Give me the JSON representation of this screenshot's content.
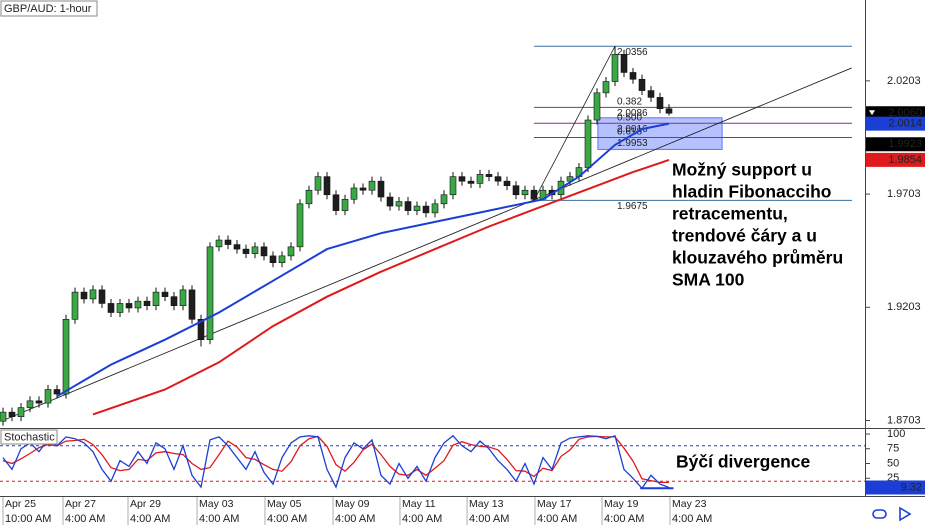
{
  "chart_data": {
    "type": "candlestick",
    "title": "GBP/AUD: 1-hour",
    "up_color": "#39a845",
    "down_color": "#1e1e1e",
    "open": [
      1.87,
      1.874,
      1.872,
      1.876,
      1.879,
      1.878,
      1.884,
      1.882,
      1.915,
      1.927,
      1.924,
      1.928,
      1.922,
      1.918,
      1.922,
      1.92,
      1.923,
      1.921,
      1.927,
      1.925,
      1.921,
      1.928,
      1.915,
      1.906,
      1.947,
      1.95,
      1.948,
      1.946,
      1.944,
      1.947,
      1.943,
      1.94,
      1.943,
      1.947,
      1.966,
      1.972,
      1.978,
      1.97,
      1.963,
      1.968,
      1.973,
      1.972,
      1.976,
      1.969,
      1.965,
      1.967,
      1.963,
      1.965,
      1.962,
      1.966,
      1.97,
      1.978,
      1.976,
      1.975,
      1.979,
      1.978,
      1.976,
      1.974,
      1.97,
      1.972,
      1.968,
      1.972,
      1.97,
      1.976,
      1.978,
      1.982,
      2.003,
      2.015,
      2.02,
      2.032,
      2.024,
      2.021,
      2.016,
      2.013,
      2.008
    ],
    "high": [
      1.876,
      1.876,
      1.878,
      1.881,
      1.881,
      1.886,
      1.886,
      1.917,
      1.929,
      1.929,
      1.93,
      1.93,
      1.924,
      1.924,
      1.924,
      1.925,
      1.925,
      1.929,
      1.929,
      1.927,
      1.93,
      1.93,
      1.917,
      1.949,
      1.952,
      1.952,
      1.95,
      1.948,
      1.949,
      1.949,
      1.945,
      1.945,
      1.949,
      1.968,
      1.974,
      1.98,
      1.98,
      1.972,
      1.97,
      1.975,
      1.975,
      1.978,
      1.978,
      1.971,
      1.969,
      1.969,
      1.967,
      1.967,
      1.968,
      1.972,
      1.98,
      1.98,
      1.978,
      1.981,
      1.981,
      1.98,
      1.978,
      1.976,
      1.974,
      1.974,
      1.974,
      1.974,
      1.978,
      1.98,
      1.984,
      2.005,
      2.017,
      2.022,
      2.0356,
      2.034,
      2.026,
      2.023,
      2.018,
      2.015,
      2.01
    ],
    "low": [
      1.868,
      1.87,
      1.87,
      1.874,
      1.876,
      1.876,
      1.88,
      1.88,
      1.913,
      1.922,
      1.922,
      1.92,
      1.916,
      1.916,
      1.918,
      1.918,
      1.919,
      1.919,
      1.923,
      1.919,
      1.919,
      1.913,
      1.903,
      1.904,
      1.945,
      1.946,
      1.944,
      1.942,
      1.942,
      1.941,
      1.938,
      1.938,
      1.941,
      1.945,
      1.964,
      1.97,
      1.968,
      1.961,
      1.961,
      1.966,
      1.97,
      1.97,
      1.967,
      1.963,
      1.963,
      1.961,
      1.961,
      1.96,
      1.96,
      1.964,
      1.968,
      1.974,
      1.973,
      1.973,
      1.976,
      1.974,
      1.972,
      1.968,
      1.968,
      1.9675,
      1.9678,
      1.968,
      1.968,
      1.974,
      1.976,
      1.98,
      2.001,
      2.013,
      2.018,
      2.022,
      2.019,
      2.014,
      2.011,
      2.006,
      2.005
    ],
    "close": [
      1.874,
      1.872,
      1.876,
      1.879,
      1.878,
      1.884,
      1.882,
      1.915,
      1.927,
      1.924,
      1.928,
      1.922,
      1.918,
      1.922,
      1.92,
      1.923,
      1.921,
      1.927,
      1.925,
      1.921,
      1.928,
      1.915,
      1.906,
      1.947,
      1.95,
      1.948,
      1.946,
      1.944,
      1.947,
      1.943,
      1.94,
      1.943,
      1.947,
      1.966,
      1.972,
      1.978,
      1.97,
      1.963,
      1.968,
      1.973,
      1.972,
      1.976,
      1.969,
      1.965,
      1.967,
      1.963,
      1.965,
      1.962,
      1.966,
      1.97,
      1.978,
      1.976,
      1.975,
      1.979,
      1.978,
      1.976,
      1.974,
      1.97,
      1.972,
      1.968,
      1.972,
      1.97,
      1.976,
      1.978,
      1.982,
      2.003,
      2.015,
      2.02,
      2.032,
      2.024,
      2.021,
      2.016,
      2.013,
      2.008,
      2.006
    ],
    "xlim": [
      -0.333,
      95.778
    ],
    "ylim": [
      1.867,
      2.056
    ],
    "yticks": [
      2.0203,
      1.9703,
      1.9203,
      1.8703
    ],
    "xticks": [
      {
        "value": 0,
        "label": "Apr 25"
      },
      {
        "value": 6.67,
        "label": "Apr 27"
      },
      {
        "value": 13.89,
        "label": "Apr 29"
      },
      {
        "value": 21.56,
        "label": "May 03"
      },
      {
        "value": 29.11,
        "label": "May 05"
      },
      {
        "value": 36.67,
        "label": "May 09"
      },
      {
        "value": 44.11,
        "label": "May 11"
      },
      {
        "value": 51.56,
        "label": "May 13"
      },
      {
        "value": 59.11,
        "label": "May 17"
      },
      {
        "value": 66.56,
        "label": "May 19"
      },
      {
        "value": 74.11,
        "label": "May 23"
      }
    ],
    "time_labels": [
      "10:00 AM",
      "4:00 AM",
      "4:00 AM",
      "4:00 AM",
      "4:00 AM",
      "4:00 AM",
      "4:00 AM",
      "4:00 AM",
      "4:00 AM",
      "4:00 AM",
      "4:00 AM"
    ],
    "overlays": [
      {
        "color": "#1b3fd6",
        "x": [
          6,
          12,
          18,
          24,
          30,
          36,
          42,
          48,
          54,
          60,
          64,
          68,
          71,
          74
        ],
        "values": [
          1.881,
          1.895,
          1.906,
          1.918,
          1.932,
          1.946,
          1.953,
          1.958,
          1.963,
          1.968,
          1.978,
          1.992,
          1.999,
          2.0014
        ]
      },
      {
        "color": "#e0191b",
        "x": [
          10,
          18,
          24,
          30,
          36,
          42,
          48,
          54,
          60,
          66,
          70,
          74
        ],
        "values": [
          1.873,
          1.884,
          1.896,
          1.912,
          1.925,
          1.936,
          1.946,
          1.956,
          1.965,
          1.974,
          1.98,
          1.9854
        ]
      }
    ],
    "trendline": {
      "x": [
        0.22,
        94.3
      ],
      "values": [
        1.8707,
        2.026
      ]
    },
    "fibonacci": {
      "x": [
        59,
        68
      ],
      "levels": [
        {
          "price": 2.0356,
          "color": "#3d6f99"
        },
        {
          "ratio": "0.382",
          "price": 2.0086,
          "color": "#8a2f8a"
        },
        {
          "ratio": "0.500",
          "price": 2.0016,
          "color": "#8a2f8a"
        },
        {
          "ratio": "0.618",
          "price": 1.9953,
          "color": "#8a2f8a"
        },
        {
          "price": 1.9675,
          "color": "#3d6f99"
        }
      ]
    },
    "zone": {
      "x": [
        66.1,
        79.9
      ],
      "values": [
        1.99,
        2.004
      ],
      "color": "#5a78ff"
    },
    "price_tags": [
      {
        "value": 2.006,
        "label": "2.0060",
        "color": "#000000"
      },
      {
        "value": 2.0014,
        "label": "2.0014",
        "color": "#1b3fd6"
      },
      {
        "value": 1.9923,
        "label": "1.9923",
        "color": "#000000"
      },
      {
        "value": 1.9854,
        "label": "1.9854",
        "color": "#e0191b"
      }
    ],
    "annotations": [
      {
        "lines": [
          "Možný support u",
          "hladin Fibonacciho",
          "retracementu,",
          "trendové čáry a u",
          "klouzavého průměru",
          "SMA 100"
        ]
      },
      {
        "lines": [
          "Býčí divergence"
        ]
      }
    ],
    "stochastic": {
      "title": "Stochastic",
      "ylim": [
        0,
        100
      ],
      "yticks": [
        100,
        75,
        50,
        25
      ],
      "levels": [
        {
          "value": 80,
          "color": "#1b3fd6"
        },
        {
          "value": 20,
          "color": "#e0191b"
        }
      ],
      "k": {
        "color": "#1b3fd6",
        "values": [
          60,
          40,
          75,
          85,
          70,
          90,
          80,
          95,
          92,
          85,
          70,
          40,
          20,
          55,
          45,
          70,
          50,
          85,
          75,
          40,
          80,
          30,
          10,
          90,
          95,
          80,
          60,
          40,
          70,
          35,
          15,
          60,
          85,
          95,
          97,
          95,
          40,
          10,
          60,
          85,
          75,
          90,
          30,
          15,
          50,
          25,
          45,
          20,
          60,
          85,
          97,
          80,
          70,
          88,
          75,
          55,
          40,
          20,
          50,
          15,
          60,
          40,
          85,
          93,
          95,
          97,
          96,
          92,
          97,
          40,
          25,
          8,
          30,
          15,
          9.32
        ]
      },
      "d": {
        "color": "#e0191b",
        "values": [
          55,
          50,
          58,
          67,
          77,
          82,
          80,
          88,
          89,
          91,
          82,
          65,
          43,
          38,
          40,
          57,
          55,
          68,
          70,
          67,
          65,
          50,
          40,
          43,
          65,
          88,
          78,
          60,
          57,
          48,
          40,
          37,
          53,
          80,
          92,
          96,
          79,
          48,
          37,
          52,
          73,
          83,
          65,
          45,
          32,
          30,
          40,
          30,
          42,
          55,
          81,
          87,
          82,
          79,
          78,
          73,
          57,
          38,
          37,
          28,
          42,
          38,
          62,
          73,
          91,
          95,
          96,
          95,
          95,
          76,
          54,
          24,
          21,
          18,
          18
        ]
      },
      "divergence": {
        "x": [
          70.8,
          74.5
        ],
        "values": [
          8,
          8
        ],
        "color": "#1b3fd6"
      }
    }
  }
}
